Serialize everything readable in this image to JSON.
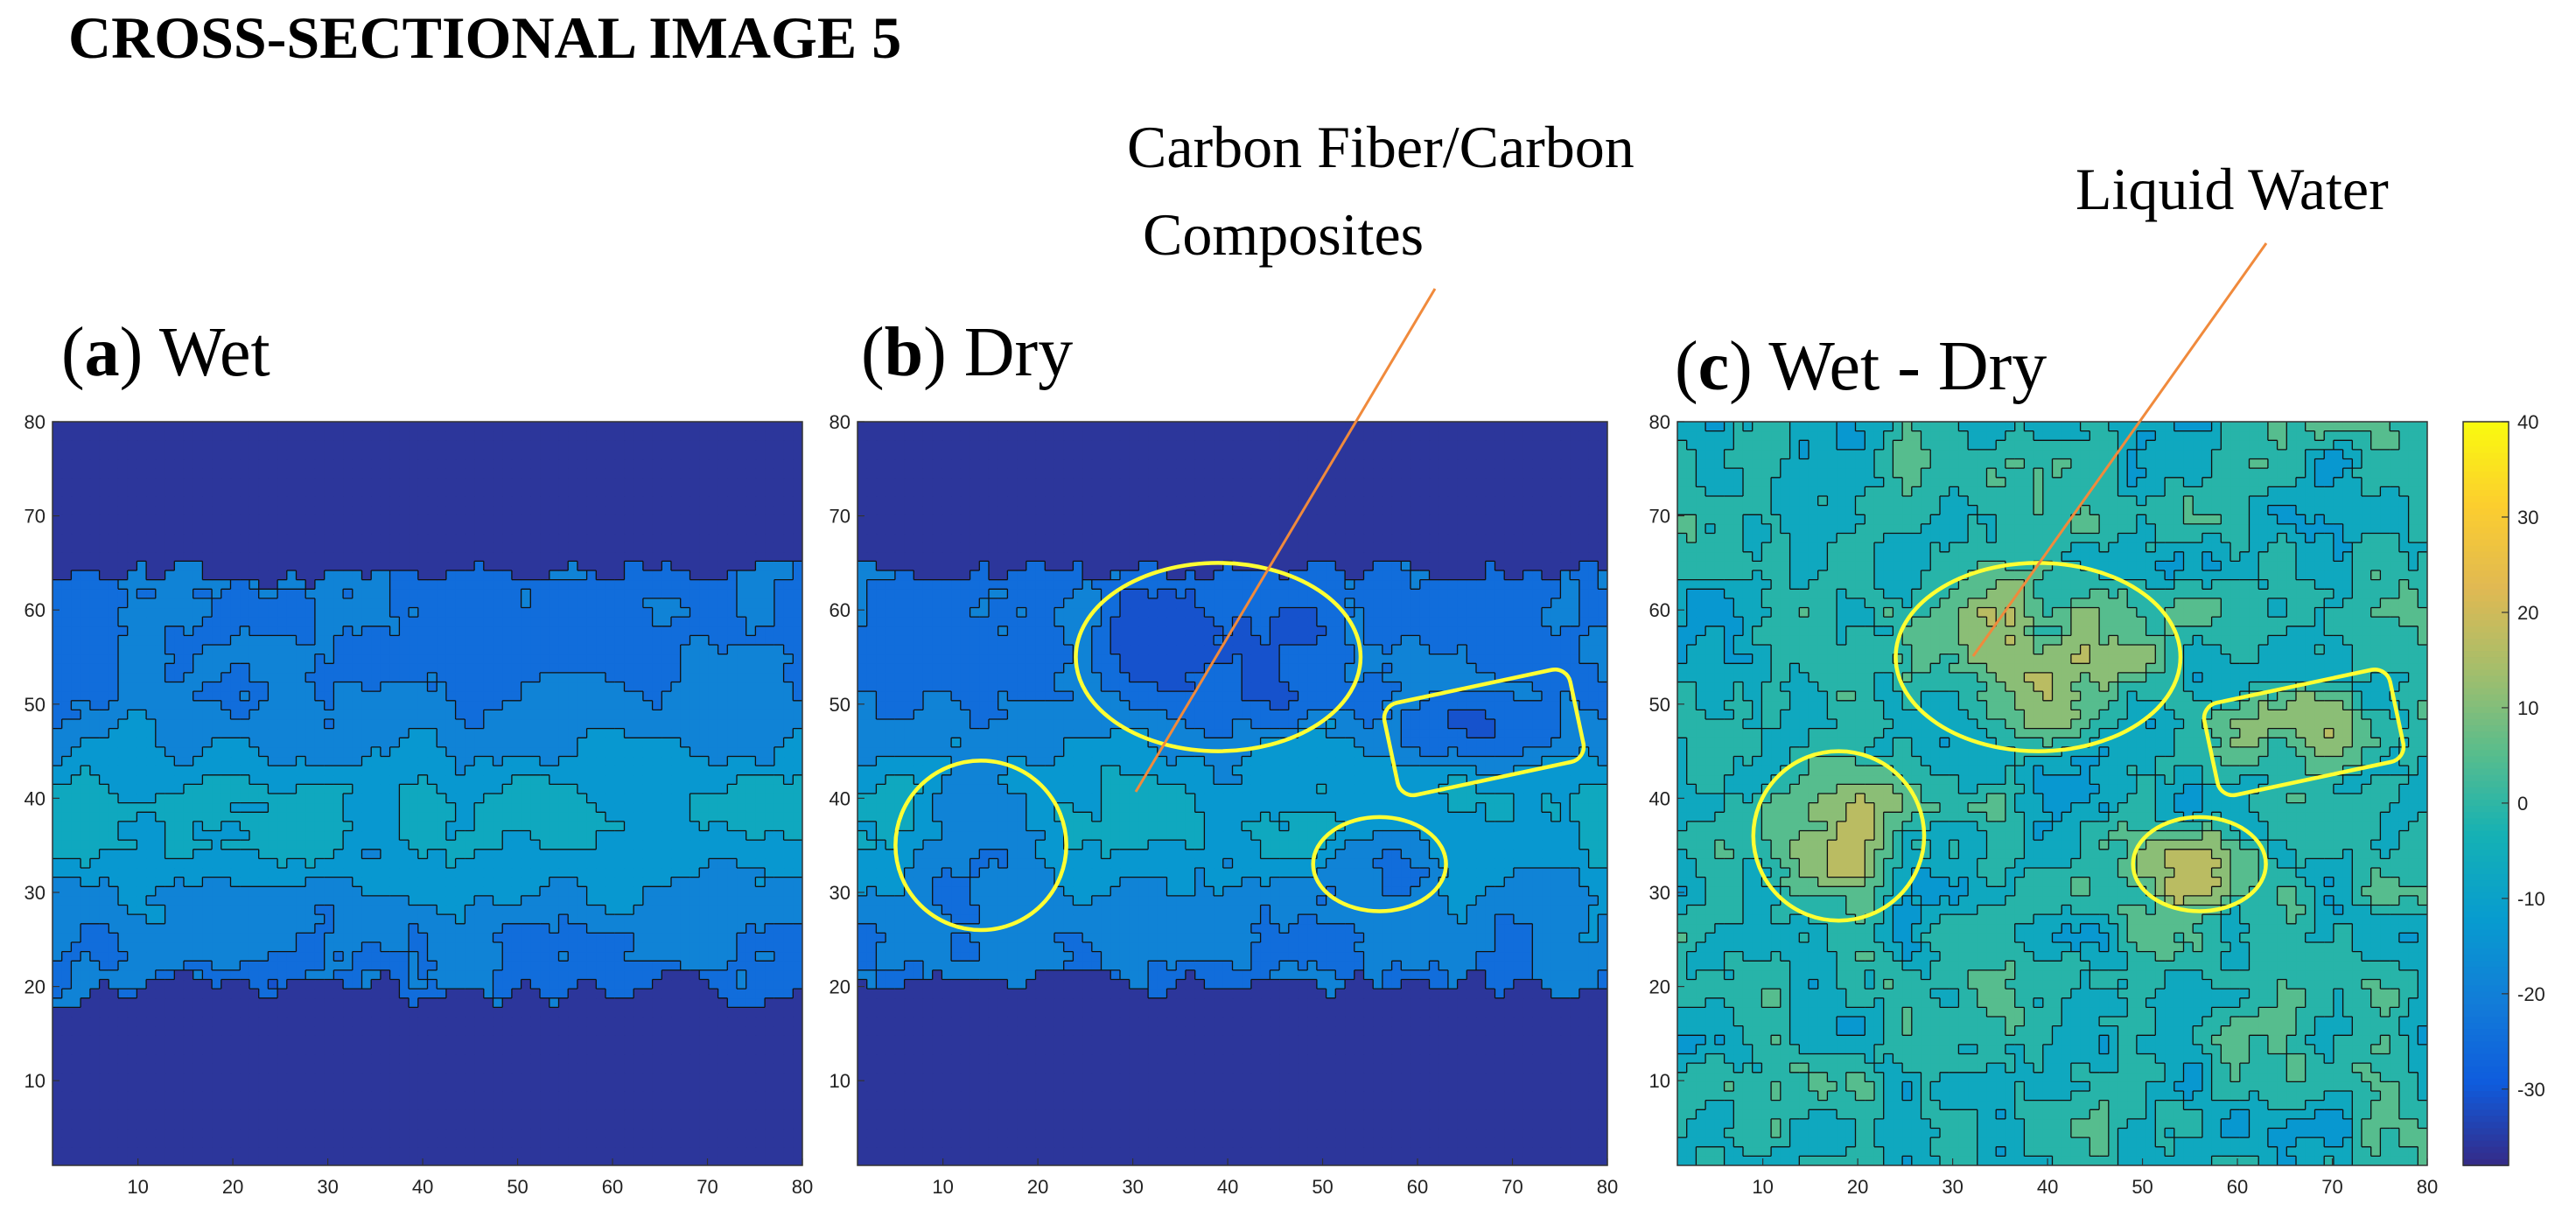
{
  "page_title": "CROSS-SECTIONAL IMAGE 5",
  "annotations": {
    "carbon_line1": "Carbon Fiber/Carbon",
    "carbon_line2": "Composites",
    "water": "Liquid Water",
    "leader_color": "#f08a3c",
    "highlight_color": "#ffff33"
  },
  "panels": [
    {
      "letter": "a",
      "label": "Wet"
    },
    {
      "letter": "b",
      "label": "Dry"
    },
    {
      "letter": "c",
      "label": "Wet - Dry"
    }
  ],
  "chart_data": [
    {
      "type": "heatmap",
      "panel": "a",
      "title": "Wet",
      "xlim": [
        1,
        80
      ],
      "ylim": [
        1,
        80
      ],
      "xticks": [
        10,
        20,
        30,
        40,
        50,
        60,
        70,
        80
      ],
      "yticks": [
        10,
        20,
        30,
        40,
        50,
        60,
        70,
        80
      ],
      "band_y": [
        20,
        64
      ],
      "background_level": -36,
      "contours": true
    },
    {
      "type": "heatmap",
      "panel": "b",
      "title": "Dry",
      "xlim": [
        1,
        80
      ],
      "ylim": [
        1,
        80
      ],
      "xticks": [
        10,
        20,
        30,
        40,
        50,
        60,
        70,
        80
      ],
      "yticks": [
        10,
        20,
        30,
        40,
        50,
        60,
        70,
        80
      ],
      "band_y": [
        20,
        64
      ],
      "background_level": -36,
      "contours": true,
      "highlights": [
        {
          "shape": "ellipse",
          "center": [
            14,
            35
          ],
          "radii": [
            9,
            9
          ]
        },
        {
          "shape": "ellipse",
          "center": [
            39,
            55
          ],
          "radii": [
            15,
            10
          ]
        },
        {
          "shape": "rect",
          "center": [
            67,
            47
          ],
          "size": [
            20,
            10
          ],
          "rotation_deg": -12
        },
        {
          "shape": "ellipse",
          "center": [
            56,
            33
          ],
          "radii": [
            7,
            5
          ]
        }
      ]
    },
    {
      "type": "heatmap",
      "panel": "c",
      "title": "Wet - Dry",
      "xlim": [
        1,
        80
      ],
      "ylim": [
        1,
        80
      ],
      "xticks": [
        10,
        20,
        30,
        40,
        50,
        60,
        70,
        80
      ],
      "yticks": [
        10,
        20,
        30,
        40,
        50,
        60,
        70,
        80
      ],
      "background_level": 0,
      "contours": true,
      "highlights": [
        {
          "shape": "ellipse",
          "center": [
            18,
            36
          ],
          "radii": [
            9,
            9
          ]
        },
        {
          "shape": "ellipse",
          "center": [
            39,
            55
          ],
          "radii": [
            15,
            10
          ]
        },
        {
          "shape": "rect",
          "center": [
            67,
            47
          ],
          "size": [
            20,
            10
          ],
          "rotation_deg": -12
        },
        {
          "shape": "ellipse",
          "center": [
            56,
            33
          ],
          "radii": [
            7,
            5
          ]
        }
      ]
    }
  ],
  "colorbar": {
    "range": [
      -38,
      40
    ],
    "ticks": [
      40,
      30,
      20,
      10,
      0,
      -10,
      -20,
      -30
    ],
    "colormap": "parula"
  }
}
